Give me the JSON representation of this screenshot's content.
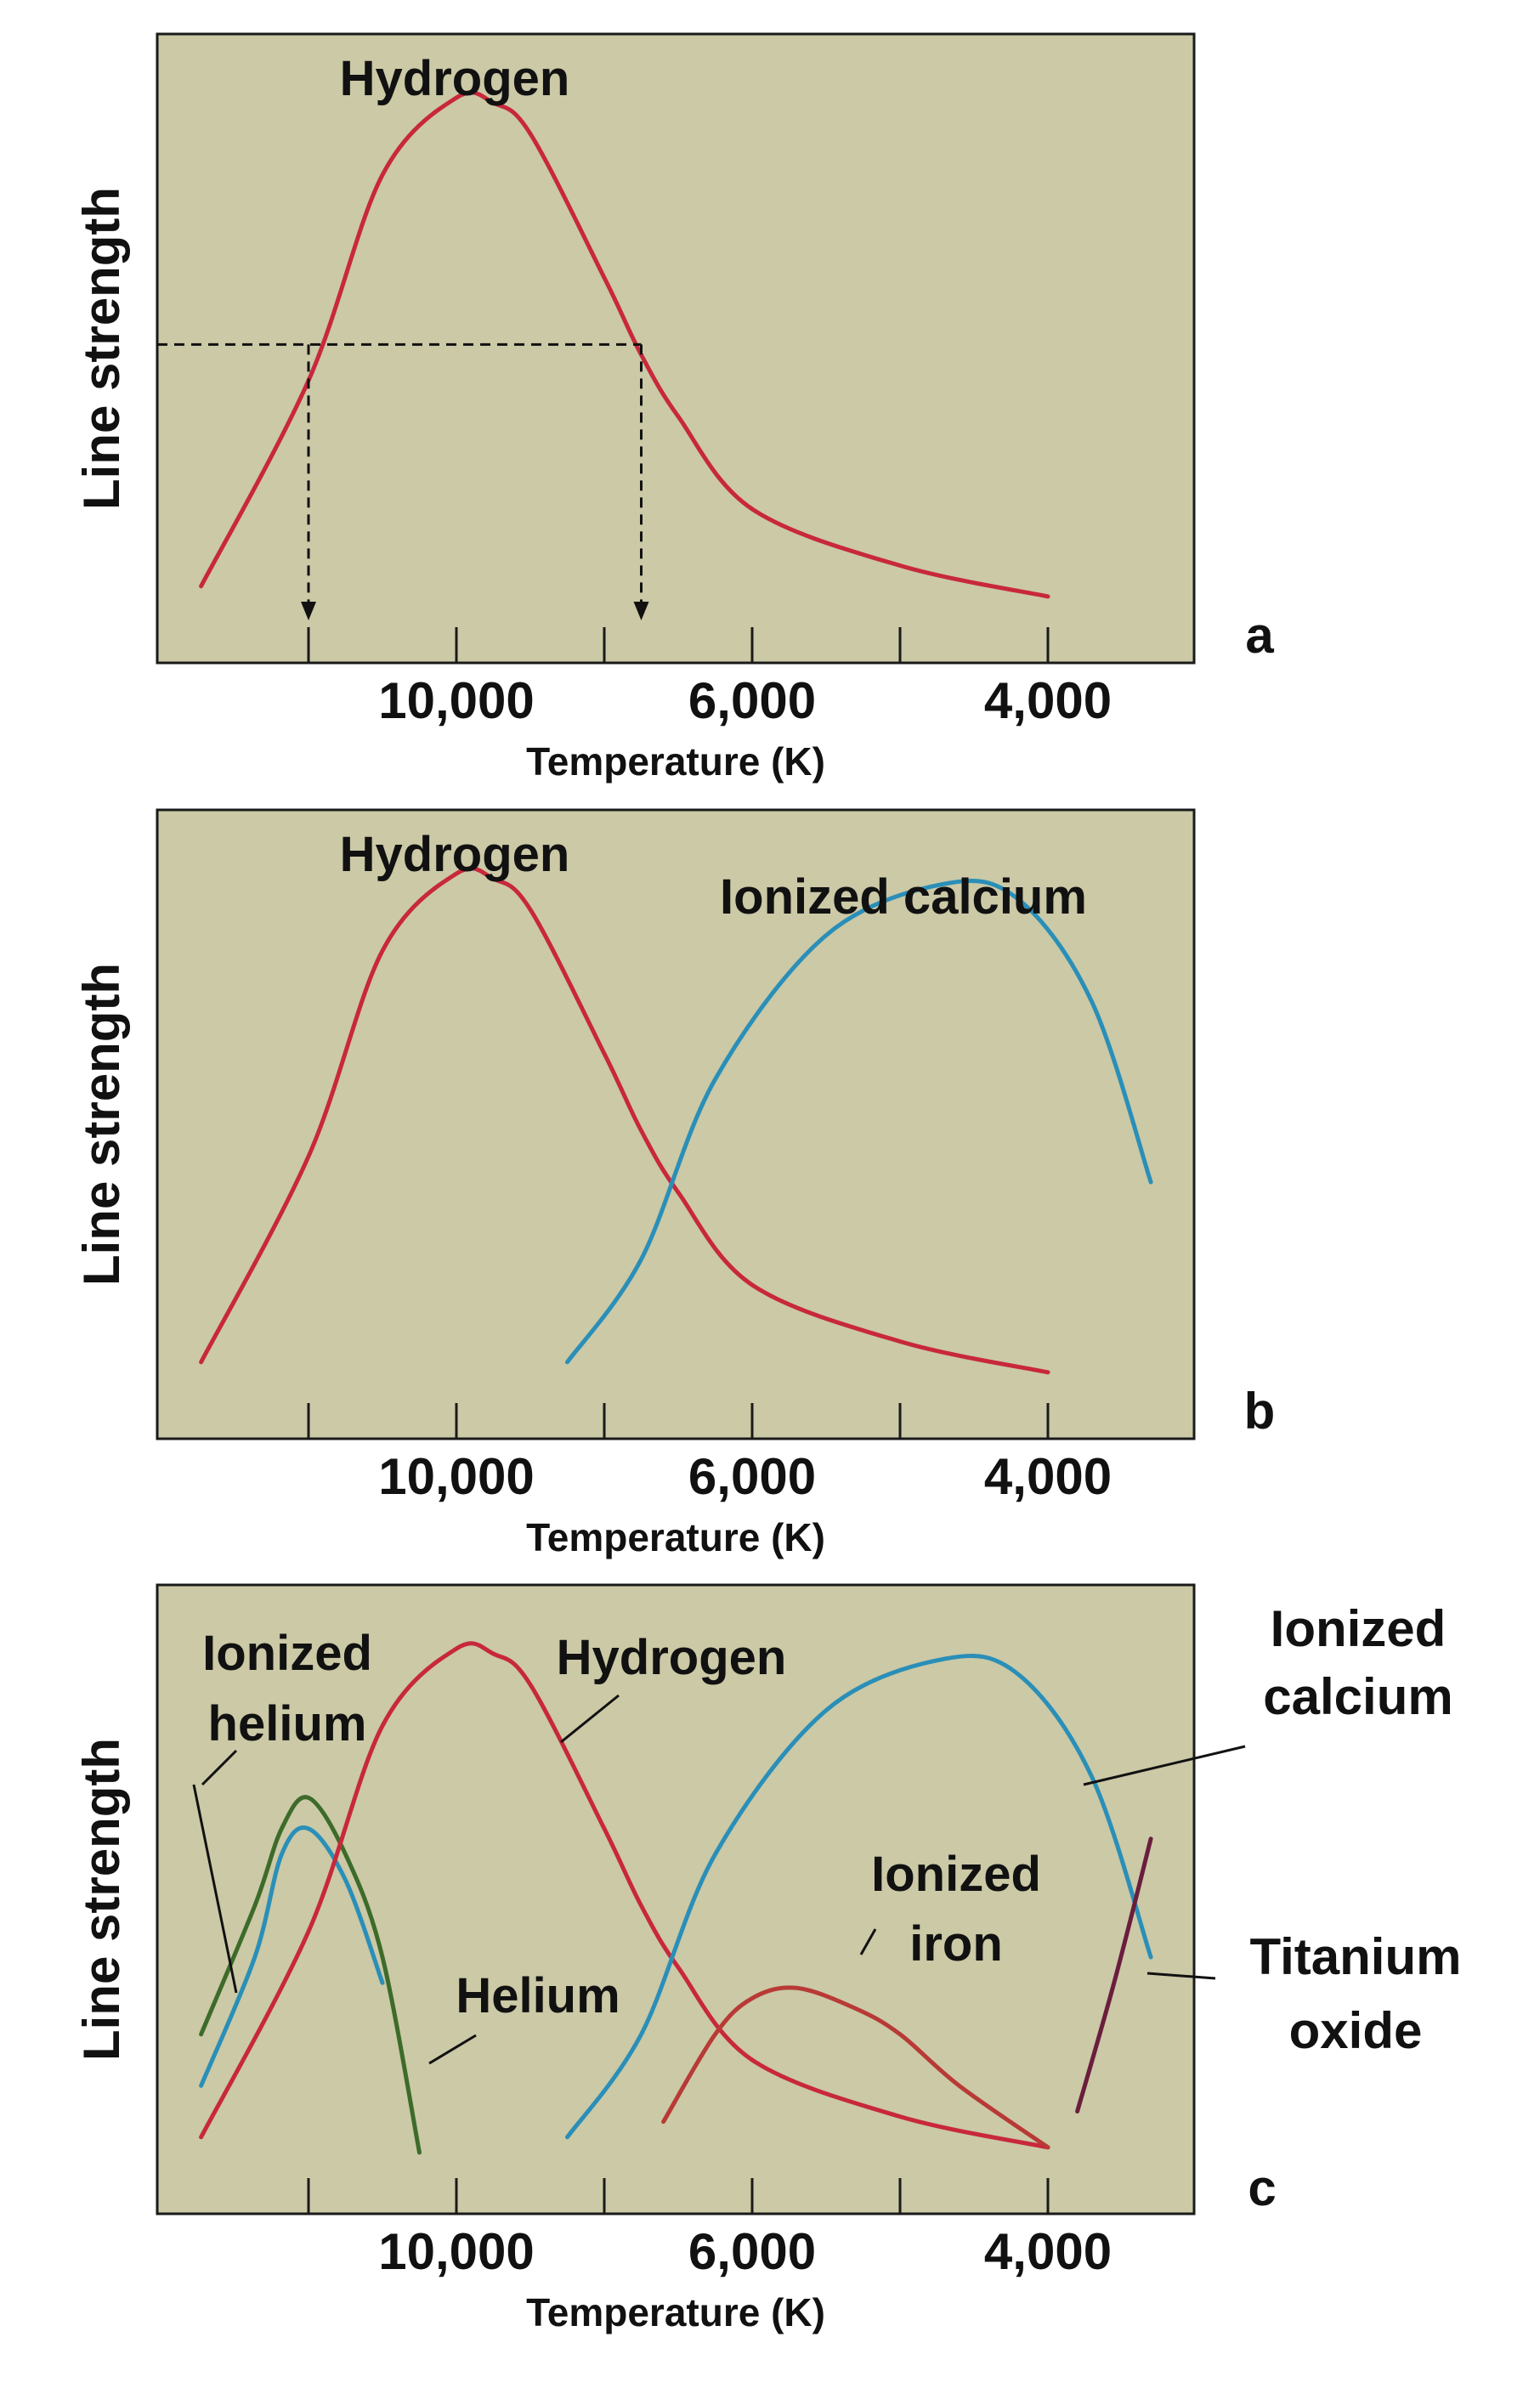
{
  "chart_data": [
    {
      "type": "line",
      "panel_label": "a",
      "xlabel": "Temperature (K)",
      "ylabel": "Line strength",
      "x_ticks": [
        "10,000",
        "6,000",
        "4,000"
      ],
      "x_axis_direction": "decreasing temperature left to right",
      "y_scale": "relative, no numeric ticks",
      "background_color": "#cbc9a6",
      "series": [
        {
          "name": "Hydrogen",
          "color": "#c8283c",
          "x": [
            14000,
            12000,
            11000,
            10000,
            9500,
            9000,
            8000,
            7500,
            7000,
            6000,
            5000,
            4000
          ],
          "y": [
            0.05,
            0.45,
            0.85,
            1.0,
            0.99,
            0.93,
            0.65,
            0.5,
            0.38,
            0.2,
            0.09,
            0.03
          ]
        }
      ],
      "guides": {
        "line_strength": 0.52,
        "temperatures": [
          12000,
          7500
        ]
      }
    },
    {
      "type": "line",
      "panel_label": "b",
      "xlabel": "Temperature (K)",
      "ylabel": "Line strength",
      "x_ticks": [
        "10,000",
        "6,000",
        "4,000"
      ],
      "background_color": "#cbc9a6",
      "series": [
        {
          "name": "Hydrogen",
          "color": "#c8283c",
          "x": [
            14000,
            12000,
            11000,
            10000,
            9500,
            9000,
            8000,
            7500,
            7000,
            6000,
            5000,
            4000
          ],
          "y": [
            0.05,
            0.45,
            0.85,
            1.0,
            0.99,
            0.93,
            0.65,
            0.5,
            0.38,
            0.2,
            0.09,
            0.03
          ]
        },
        {
          "name": "Ionized calcium",
          "color": "#2a8fb8",
          "x": [
            8500,
            7500,
            6500,
            5500,
            4700,
            4200,
            3700,
            3300
          ],
          "y": [
            0.05,
            0.25,
            0.6,
            0.88,
            0.98,
            0.95,
            0.75,
            0.4
          ]
        }
      ]
    },
    {
      "type": "line",
      "panel_label": "c",
      "xlabel": "Temperature (K)",
      "ylabel": "Line strength",
      "x_ticks": [
        "10,000",
        "6,000",
        "4,000"
      ],
      "background_color": "#cbc9a6",
      "series": [
        {
          "name": "Ionized helium",
          "color": "#2a8fb8",
          "x": [
            14000,
            13000,
            12500,
            12000,
            11500,
            11000
          ],
          "y": [
            0.15,
            0.4,
            0.6,
            0.65,
            0.55,
            0.35
          ]
        },
        {
          "name": "Helium",
          "color": "#3d6b2a",
          "x": [
            14000,
            13000,
            12500,
            12000,
            11500,
            11000,
            10500
          ],
          "y": [
            0.25,
            0.5,
            0.65,
            0.71,
            0.6,
            0.4,
            0.02
          ]
        },
        {
          "name": "Hydrogen",
          "color": "#c8283c",
          "x": [
            14000,
            12000,
            11000,
            10000,
            9500,
            9000,
            8000,
            7500,
            7000,
            6000,
            5000,
            4000
          ],
          "y": [
            0.05,
            0.45,
            0.85,
            1.0,
            0.99,
            0.93,
            0.65,
            0.5,
            0.38,
            0.2,
            0.09,
            0.03
          ]
        },
        {
          "name": "Ionized calcium",
          "color": "#2a8fb8",
          "x": [
            8500,
            7500,
            6500,
            5500,
            4700,
            4200,
            3700,
            3300
          ],
          "y": [
            0.05,
            0.25,
            0.6,
            0.88,
            0.98,
            0.95,
            0.75,
            0.4
          ]
        },
        {
          "name": "Ionized iron",
          "color": "#b83a36",
          "x": [
            7200,
            6500,
            6000,
            5700,
            5300,
            5000,
            4600,
            4000
          ],
          "y": [
            0.08,
            0.25,
            0.32,
            0.34,
            0.3,
            0.25,
            0.15,
            0.03
          ]
        },
        {
          "name": "Titanium oxide",
          "color": "#6a1e3c",
          "x": [
            3800,
            3550,
            3300
          ],
          "y": [
            0.1,
            0.35,
            0.63
          ]
        }
      ],
      "labels": {
        "ionized_helium": [
          "Ionized",
          "helium"
        ],
        "hydrogen": "Hydrogen",
        "helium": "Helium",
        "ionized_calcium": [
          "Ionized",
          "calcium"
        ],
        "ionized_iron": [
          "Ionized",
          "iron"
        ],
        "titanium_oxide": [
          "Titanium",
          "oxide"
        ]
      }
    }
  ],
  "colors": {
    "panel_background": "#cbc9a6",
    "hydrogen": "#c8283c",
    "ionized_calcium": "#2a8fb8",
    "helium": "#3d6b2a",
    "ionized_iron": "#b83a36",
    "titanium_oxide": "#6a1e3c"
  }
}
